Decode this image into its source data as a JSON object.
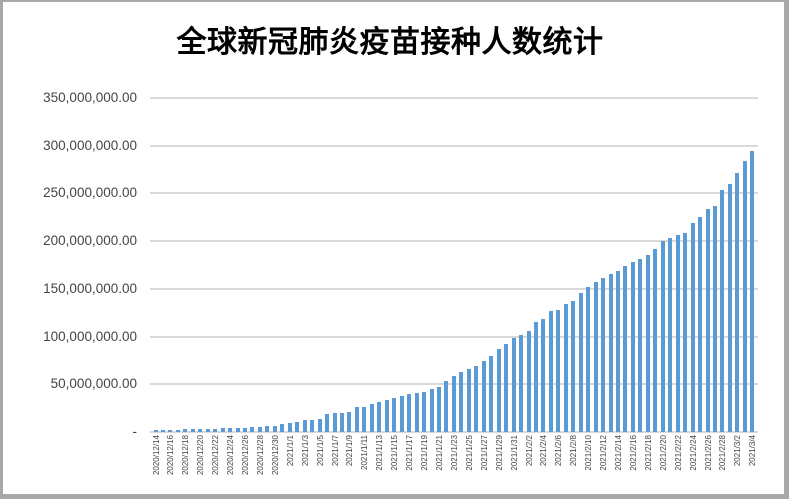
{
  "page": {
    "background_color": "#ffffff",
    "border_color": "#a8a8a8"
  },
  "chart_data": {
    "type": "bar",
    "title": "全球新冠肺炎疫苗接种人数统计",
    "xlabel": "",
    "ylabel": "",
    "ylim": [
      0,
      350000000
    ],
    "y_tick_interval": 50000000,
    "y_tick_labels": [
      "-",
      "50,000,000.00",
      "100,000,000.00",
      "150,000,000.00",
      "200,000,000.00",
      "250,000,000.00",
      "300,000,000.00",
      "350,000,000.00"
    ],
    "x_label_interval": 2,
    "grid": true,
    "legend_position": "none",
    "bar_color": "#5b9bd5",
    "gridline_color": "#d9d9d9",
    "axis_text_color": "#454545",
    "title_color": "#000000",
    "categories": [
      "2020/12/14",
      "2020/12/15",
      "2020/12/16",
      "2020/12/17",
      "2020/12/18",
      "2020/12/19",
      "2020/12/20",
      "2020/12/21",
      "2020/12/22",
      "2020/12/23",
      "2020/12/24",
      "2020/12/25",
      "2020/12/26",
      "2020/12/27",
      "2020/12/28",
      "2020/12/29",
      "2020/12/30",
      "2020/12/31",
      "2021/1/1",
      "2021/1/2",
      "2021/1/3",
      "2021/1/4",
      "2021/1/5",
      "2021/1/6",
      "2021/1/7",
      "2021/1/8",
      "2021/1/9",
      "2021/1/10",
      "2021/1/11",
      "2021/1/12",
      "2021/1/13",
      "2021/1/14",
      "2021/1/15",
      "2021/1/16",
      "2021/1/17",
      "2021/1/18",
      "2021/1/19",
      "2021/1/20",
      "2021/1/21",
      "2021/1/22",
      "2021/1/23",
      "2021/1/24",
      "2021/1/25",
      "2021/1/26",
      "2021/1/27",
      "2021/1/28",
      "2021/1/29",
      "2021/1/30",
      "2021/1/31",
      "2021/2/1",
      "2021/2/2",
      "2021/2/3",
      "2021/2/4",
      "2021/2/5",
      "2021/2/6",
      "2021/2/7",
      "2021/2/8",
      "2021/2/9",
      "2021/2/10",
      "2021/2/11",
      "2021/2/12",
      "2021/2/13",
      "2021/2/14",
      "2021/2/15",
      "2021/2/16",
      "2021/2/17",
      "2021/2/18",
      "2021/2/19",
      "2021/2/20",
      "2021/2/21",
      "2021/2/22",
      "2021/2/23",
      "2021/2/24",
      "2021/2/25",
      "2021/2/26",
      "2021/2/27",
      "2021/2/28",
      "2021/3/1",
      "2021/3/2",
      "2021/3/3",
      "2021/3/4"
    ],
    "values": [
      2000000,
      2200000,
      2400000,
      2600000,
      2800000,
      3000000,
      3200000,
      3400000,
      3600000,
      3900000,
      4200000,
      4400000,
      4700000,
      5000000,
      5400000,
      6200000,
      6600000,
      8000000,
      9300000,
      11000000,
      12400000,
      12900000,
      13500000,
      18700000,
      19400000,
      20200000,
      21200000,
      25800000,
      26500000,
      29200000,
      31000000,
      33800000,
      35900000,
      38000000,
      39400000,
      40800000,
      42200000,
      45000000,
      47500000,
      53100000,
      59100000,
      63000000,
      66000000,
      69500000,
      74000000,
      80000000,
      87000000,
      92000000,
      98000000,
      102000000,
      106000000,
      115500000,
      118000000,
      126500000,
      127500000,
      134500000,
      137000000,
      146000000,
      152000000,
      157000000,
      161000000,
      166000000,
      169000000,
      174000000,
      178000000,
      181000000,
      185000000,
      192000000,
      200000000,
      203000000,
      206000000,
      209000000,
      219500000,
      225500000,
      233500000,
      237000000,
      253500000,
      260000000,
      271000000,
      284000000,
      294000000
    ]
  }
}
